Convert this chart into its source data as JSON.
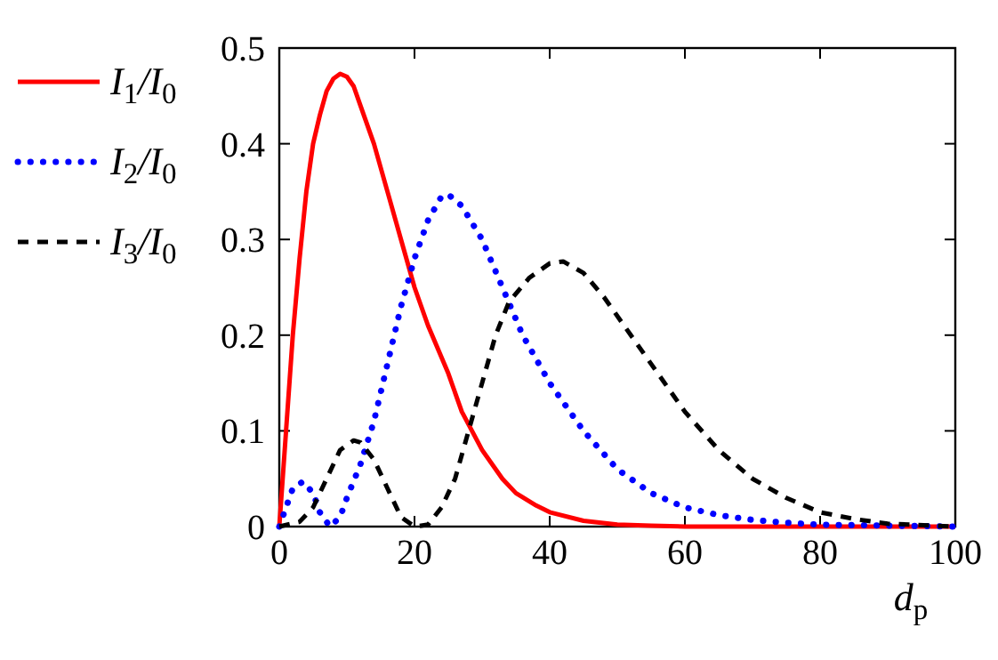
{
  "chart_data": {
    "type": "line",
    "xlabel": "d$_{p}$",
    "xlim": [
      0,
      100
    ],
    "ylim": [
      0,
      0.5
    ],
    "xticks": [
      0,
      20,
      40,
      60,
      80,
      100
    ],
    "yticks": [
      0,
      0.1,
      0.2,
      0.3,
      0.4,
      0.5
    ],
    "grid": false,
    "legend": "left",
    "series": [
      {
        "name": "I$_{1}$/I$_{0}$",
        "color": "#ff0000",
        "line_style": "solid",
        "x": [
          0,
          1,
          2,
          3,
          4,
          5,
          6,
          7,
          8,
          9,
          10,
          11,
          12,
          14,
          16,
          18,
          20,
          22,
          25,
          27,
          30,
          33,
          35,
          38,
          40,
          45,
          50,
          55,
          60,
          70,
          80,
          90,
          100
        ],
        "values": [
          0,
          0.1,
          0.2,
          0.28,
          0.35,
          0.4,
          0.43,
          0.455,
          0.468,
          0.473,
          0.47,
          0.46,
          0.44,
          0.4,
          0.35,
          0.3,
          0.25,
          0.21,
          0.16,
          0.12,
          0.08,
          0.05,
          0.035,
          0.022,
          0.015,
          0.006,
          0.002,
          0.001,
          0,
          0,
          0,
          0,
          0
        ]
      },
      {
        "name": "I$_{2}$/I$_{0}$",
        "color": "#0000ff",
        "line_style": "dotted",
        "x": [
          0,
          1,
          2,
          3.5,
          5,
          6,
          7.5,
          9,
          10,
          12,
          14,
          16,
          18,
          20,
          22,
          24,
          25,
          27,
          30,
          33,
          36,
          40,
          45,
          50,
          55,
          60,
          65,
          70,
          75,
          80,
          90,
          100
        ],
        "values": [
          0,
          0.02,
          0.04,
          0.047,
          0.035,
          0.015,
          0,
          0.01,
          0.03,
          0.065,
          0.11,
          0.17,
          0.23,
          0.28,
          0.32,
          0.345,
          0.347,
          0.335,
          0.3,
          0.25,
          0.2,
          0.15,
          0.1,
          0.06,
          0.035,
          0.02,
          0.012,
          0.007,
          0.004,
          0.002,
          0.001,
          0
        ]
      },
      {
        "name": "I$_{3}$/I$_{0}$",
        "color": "#000000",
        "line_style": "dashed",
        "x": [
          0,
          3,
          5,
          7,
          9,
          11,
          12,
          14,
          16,
          18,
          20,
          22,
          24,
          26,
          28,
          30,
          32,
          34,
          37,
          40,
          42,
          45,
          48,
          52,
          56,
          60,
          65,
          70,
          75,
          80,
          85,
          90,
          100
        ],
        "values": [
          0,
          0.005,
          0.02,
          0.05,
          0.08,
          0.09,
          0.088,
          0.07,
          0.04,
          0.01,
          0,
          0.002,
          0.02,
          0.05,
          0.1,
          0.15,
          0.2,
          0.235,
          0.26,
          0.275,
          0.277,
          0.265,
          0.24,
          0.2,
          0.16,
          0.12,
          0.08,
          0.05,
          0.03,
          0.015,
          0.008,
          0.003,
          0
        ]
      }
    ]
  }
}
